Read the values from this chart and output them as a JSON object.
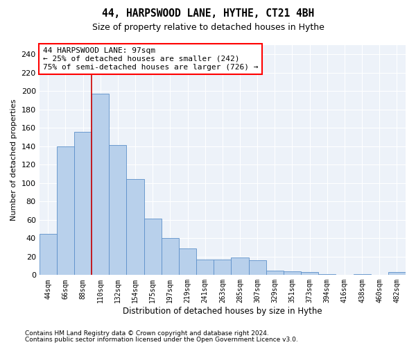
{
  "title": "44, HARPSWOOD LANE, HYTHE, CT21 4BH",
  "subtitle": "Size of property relative to detached houses in Hythe",
  "xlabel": "Distribution of detached houses by size in Hythe",
  "ylabel": "Number of detached properties",
  "bar_color": "#b8d0eb",
  "bar_edge_color": "#5b8fc9",
  "background_color": "#edf2f9",
  "grid_color": "#ffffff",
  "categories": [
    "44sqm",
    "66sqm",
    "88sqm",
    "110sqm",
    "132sqm",
    "154sqm",
    "175sqm",
    "197sqm",
    "219sqm",
    "241sqm",
    "263sqm",
    "285sqm",
    "307sqm",
    "329sqm",
    "351sqm",
    "373sqm",
    "394sqm",
    "416sqm",
    "438sqm",
    "460sqm",
    "482sqm"
  ],
  "values": [
    45,
    140,
    156,
    197,
    141,
    104,
    61,
    40,
    29,
    17,
    17,
    19,
    16,
    5,
    4,
    3,
    1,
    0,
    1,
    0,
    3
  ],
  "ylim": [
    0,
    250
  ],
  "yticks": [
    0,
    20,
    40,
    60,
    80,
    100,
    120,
    140,
    160,
    180,
    200,
    220,
    240
  ],
  "red_line_x": 2.5,
  "property_label": "44 HARPSWOOD LANE: 97sqm",
  "annotation_line1": "← 25% of detached houses are smaller (242)",
  "annotation_line2": "75% of semi-detached houses are larger (726) →",
  "footer_line1": "Contains HM Land Registry data © Crown copyright and database right 2024.",
  "footer_line2": "Contains public sector information licensed under the Open Government Licence v3.0."
}
